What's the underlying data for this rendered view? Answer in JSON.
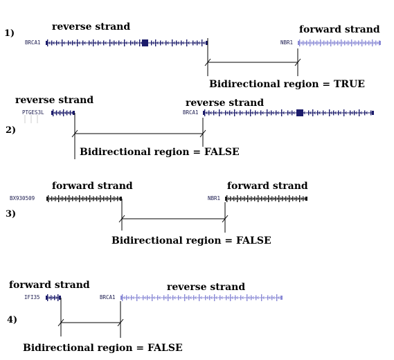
{
  "panels": [
    {
      "number": "1)",
      "strand_labels": [
        "reverse strand",
        "forward strand"
      ],
      "genes": [
        {
          "name": "BRCA1",
          "strand": "reverse",
          "color": "#1c1c6b"
        },
        {
          "name": "NBR1",
          "strand": "forward",
          "color": "#8a8ad6"
        }
      ],
      "result": "Bidirectional region = TRUE"
    },
    {
      "number": "2)",
      "strand_labels": [
        "reverse strand",
        "reverse strand"
      ],
      "genes": [
        {
          "name": "PTGES3L",
          "strand": "reverse",
          "color": "#1c1c6b"
        },
        {
          "name": "BRCA1",
          "strand": "reverse",
          "color": "#1c1c6b"
        }
      ],
      "result": "Bidirectional region =  FALSE"
    },
    {
      "number": "3)",
      "strand_labels": [
        "forward strand",
        "forward strand"
      ],
      "genes": [
        {
          "name": "BX930509",
          "strand": "forward",
          "color": "#1a1a1a"
        },
        {
          "name": "NBR1",
          "strand": "forward",
          "color": "#1a1a1a"
        }
      ],
      "result": "Bidirectional region =  FALSE"
    },
    {
      "number": "4)",
      "strand_labels": [
        "forward strand",
        "reverse strand"
      ],
      "genes": [
        {
          "name": "IFI35",
          "strand": "forward",
          "color": "#1c1c6b"
        },
        {
          "name": "BRCA1",
          "strand": "reverse",
          "color": "#8a8ad6"
        }
      ],
      "result": "Bidirectional region = FALSE"
    }
  ]
}
